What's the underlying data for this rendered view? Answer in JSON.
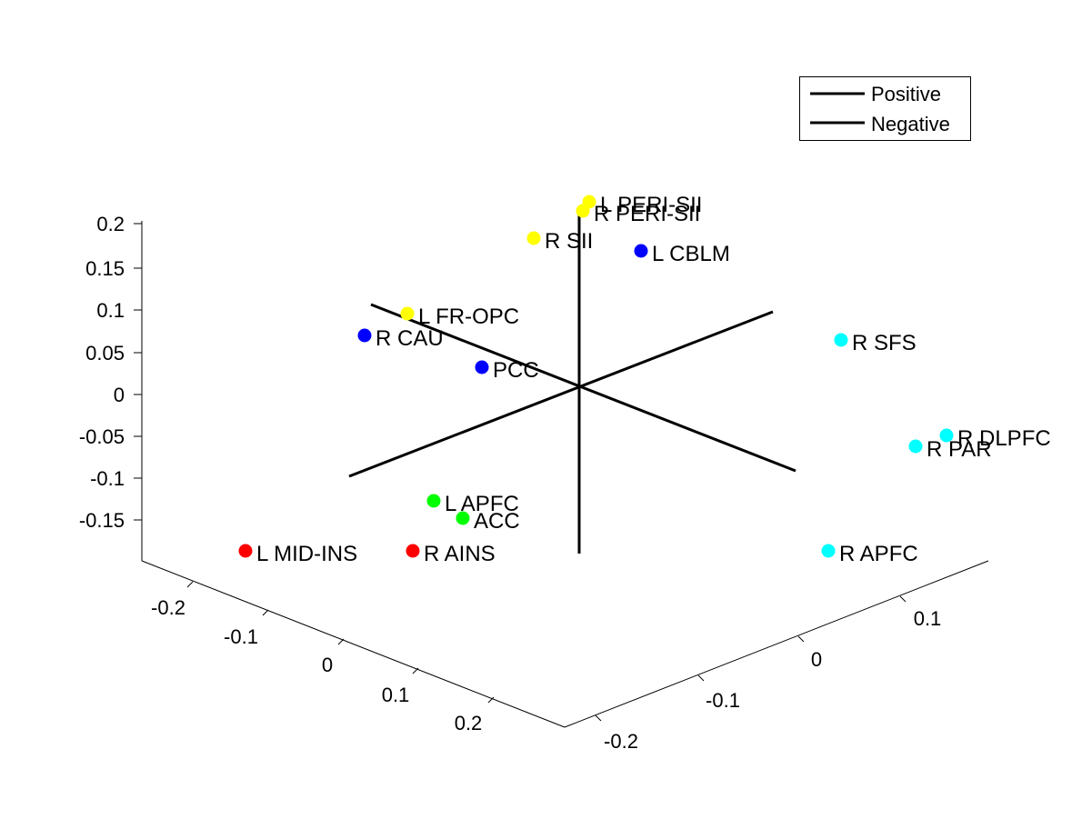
{
  "chart_data": {
    "type": "scatter",
    "title": "",
    "xlabel": "",
    "ylabel": "",
    "zlabel": "",
    "grid": false,
    "legend_placement": "top-right",
    "legend": [
      {
        "label": "Positive",
        "color": "#000000"
      },
      {
        "label": "Negative",
        "color": "#000000"
      }
    ],
    "axes": {
      "z_ticks": [
        "0.2",
        "0.15",
        "0.1",
        "0.05",
        "0",
        "-0.05",
        "-0.1",
        "-0.15"
      ],
      "x_ticks": [
        "-0.2",
        "-0.1",
        "0",
        "0.1",
        "0.2"
      ],
      "y_ticks": [
        "-0.2",
        "-0.1",
        "0",
        "0.1"
      ]
    },
    "nodes": [
      {
        "label": "L PERI-SII",
        "color": "#ffff00"
      },
      {
        "label": "R PERI-SII",
        "color": "#ffff00"
      },
      {
        "label": "R SII",
        "color": "#ffff00"
      },
      {
        "label": "L FR-OPC",
        "color": "#ffff00"
      },
      {
        "label": "L CBLM",
        "color": "#0000ff"
      },
      {
        "label": "R CAU",
        "color": "#0000ff"
      },
      {
        "label": "PCC",
        "color": "#0000ff"
      },
      {
        "label": "R SFS",
        "color": "#00ffff"
      },
      {
        "label": "R DLPFC",
        "color": "#00ffff"
      },
      {
        "label": "R PAR",
        "color": "#00ffff"
      },
      {
        "label": "R APFC",
        "color": "#00ffff"
      },
      {
        "label": "L APFC",
        "color": "#00ff00"
      },
      {
        "label": "ACC",
        "color": "#00ff00"
      },
      {
        "label": "L MID-INS",
        "color": "#ff0000"
      },
      {
        "label": "R AINS",
        "color": "#ff0000"
      }
    ]
  }
}
